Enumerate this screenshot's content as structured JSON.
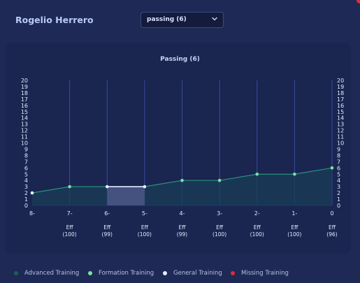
{
  "header": {
    "player_name": "Rogelio Herrero"
  },
  "selector": {
    "value": "passing (6)"
  },
  "colors": {
    "advanced": "#1e5c5a",
    "formation": "#7ce0a4",
    "general": "#e6ecff",
    "missing": "#e02b3a",
    "accent_line": "#2a8f7e",
    "vline": "#3d4fa8"
  },
  "legend": [
    {
      "label": "Advanced Training",
      "color": "#1e5c5a"
    },
    {
      "label": "Formation Training",
      "color": "#7ce0a4"
    },
    {
      "label": "General Training",
      "color": "#e6ecff"
    },
    {
      "label": "Missing Training",
      "color": "#e02b3a"
    }
  ],
  "chart_data": {
    "type": "line",
    "title": "Passing (6)",
    "categories": [
      "8-",
      "7-",
      "6-",
      "5-",
      "4-",
      "3-",
      "2-",
      "1-",
      "0"
    ],
    "values": [
      2,
      3,
      3,
      3,
      4,
      4,
      5,
      5,
      6
    ],
    "eff_labels": [
      "",
      "Eff\n(100)",
      "Eff\n(99)",
      "Eff\n(100)",
      "Eff\n(99)",
      "Eff\n(100)",
      "Eff\n(100)",
      "Eff\n(100)",
      "Eff\n(96)"
    ],
    "ylim": [
      0,
      20
    ],
    "y_ticks": [
      0,
      1,
      2,
      3,
      4,
      5,
      6,
      7,
      8,
      9,
      10,
      11,
      12,
      13,
      14,
      15,
      16,
      17,
      18,
      19,
      20
    ],
    "highlight_segment": {
      "from": "6-",
      "to": "5-",
      "type": "General Training"
    },
    "marker_types": [
      "General Training",
      "Formation Training",
      "General Training",
      "General Training",
      "Formation Training",
      "Formation Training",
      "Formation Training",
      "Formation Training",
      "Formation Training"
    ],
    "grid": "vertical",
    "legend_position": "bottom"
  }
}
